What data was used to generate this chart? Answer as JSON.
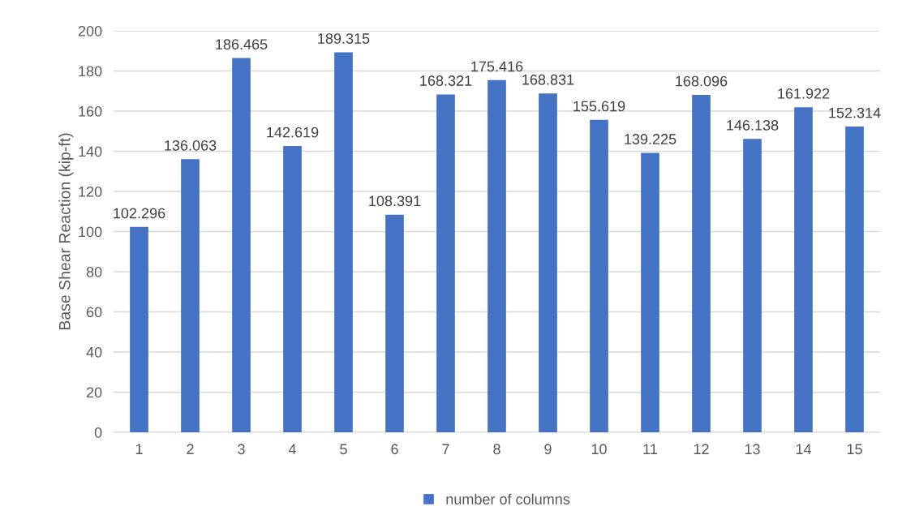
{
  "chart_data": {
    "type": "bar",
    "ylabel": "Base Shear Reaction (kip-ft)",
    "categories": [
      "1",
      "2",
      "3",
      "4",
      "5",
      "6",
      "7",
      "8",
      "9",
      "10",
      "11",
      "12",
      "13",
      "14",
      "15"
    ],
    "series": [
      {
        "name": "number of columns",
        "color": "#4472c4",
        "values": [
          102.296,
          136.063,
          186.465,
          142.619,
          189.315,
          108.391,
          168.321,
          175.416,
          168.831,
          155.619,
          139.225,
          168.096,
          146.138,
          161.922,
          152.314
        ]
      }
    ],
    "ylim": [
      0,
      200
    ],
    "yticks": [
      0,
      20,
      40,
      60,
      80,
      100,
      120,
      140,
      160,
      180,
      200
    ],
    "grid": "y",
    "legend": "bottom",
    "data_labels": true
  }
}
